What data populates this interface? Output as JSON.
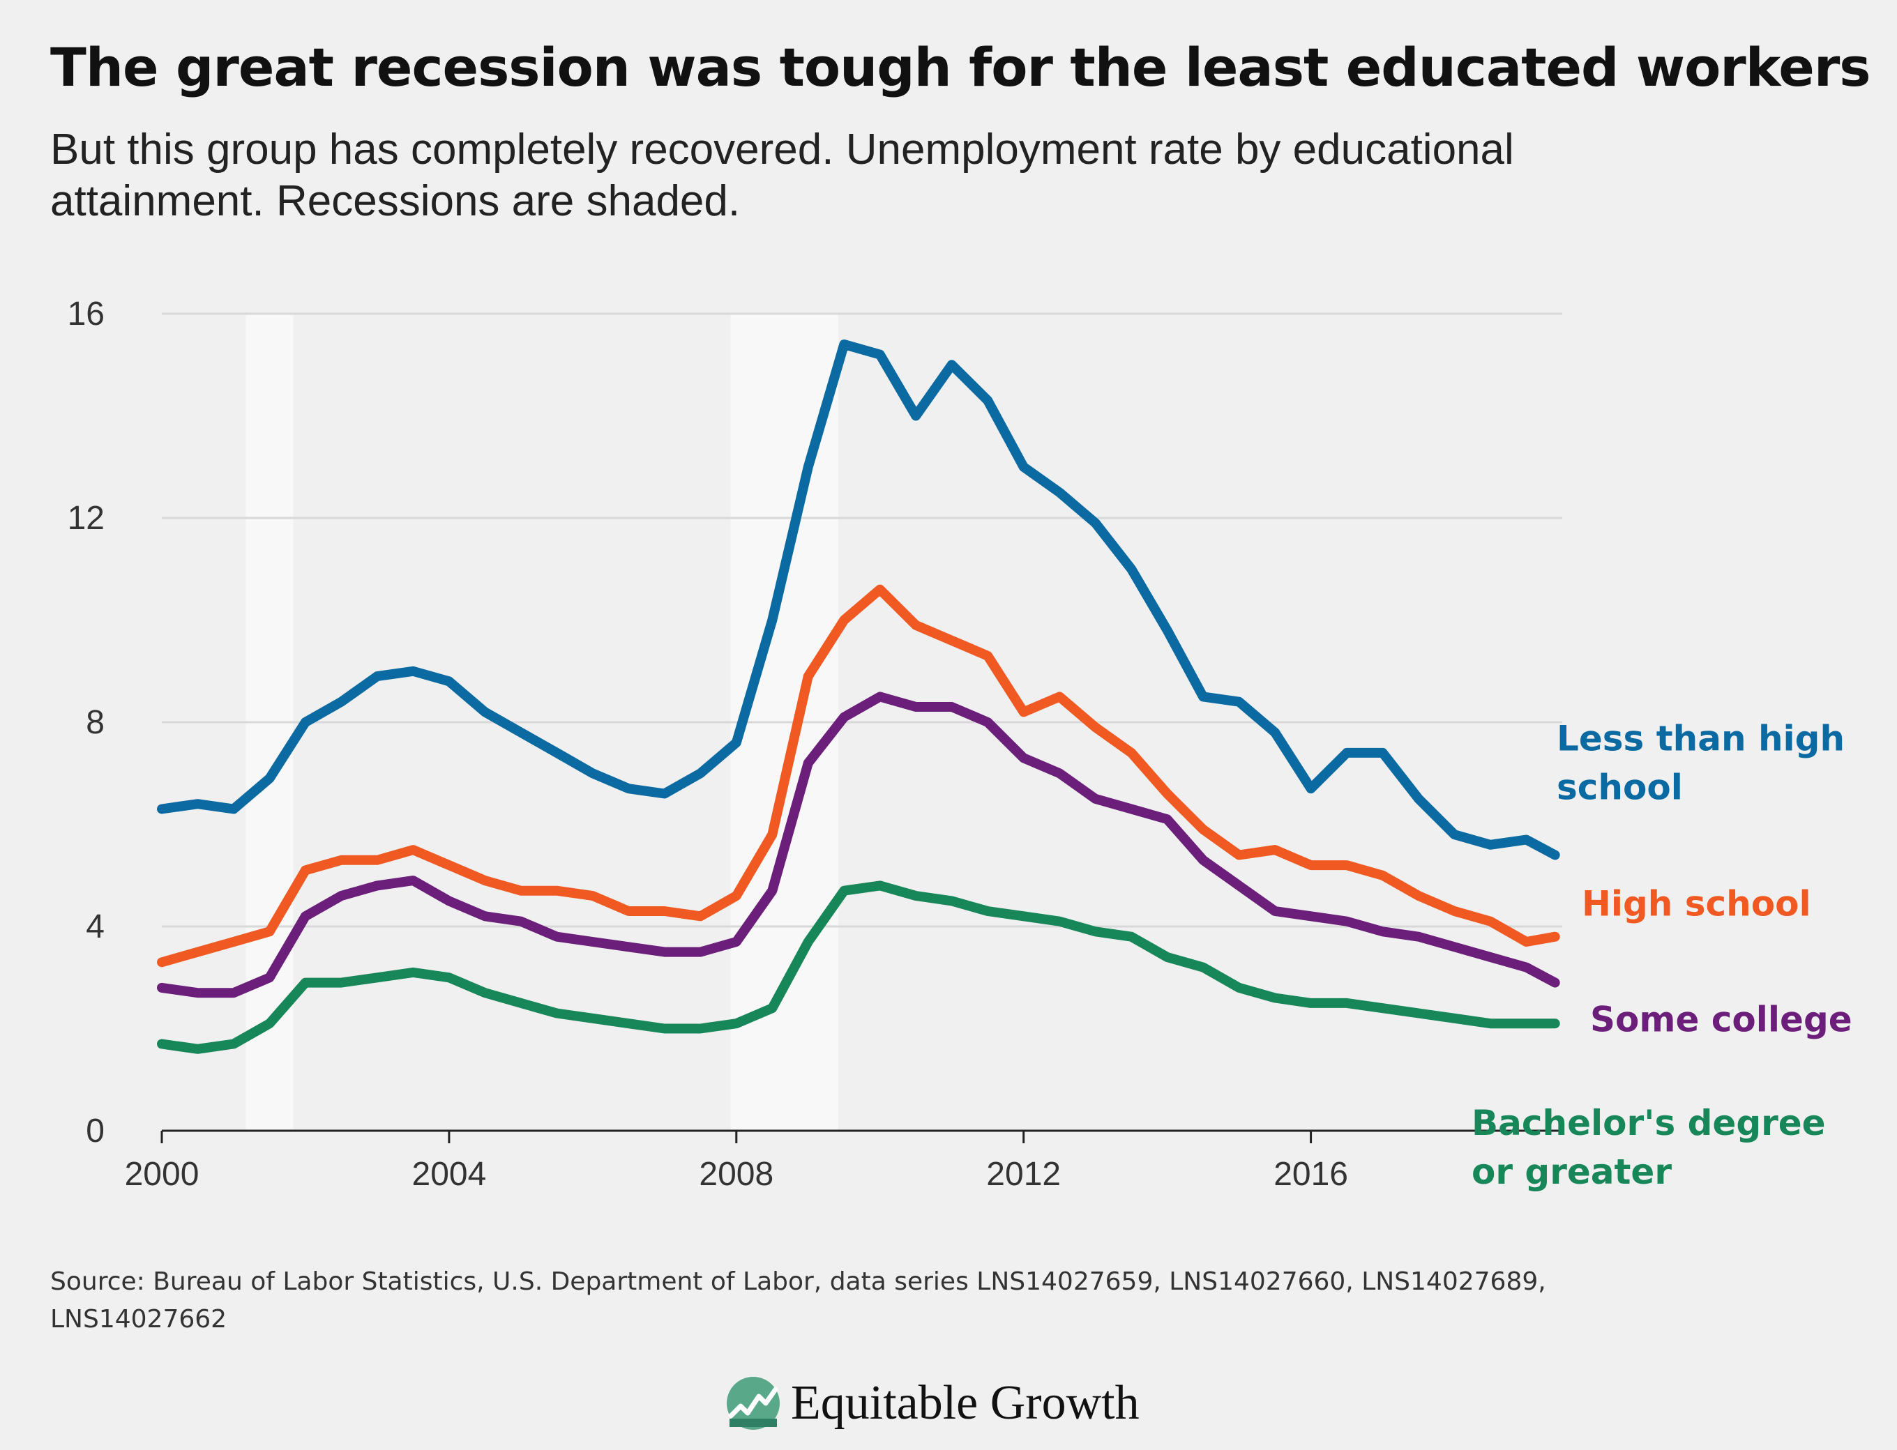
{
  "title": "The great recession was tough for the least educated workers",
  "subtitle": "But this group has completely recovered. Unemployment rate by educational attainment. Recessions are shaded.",
  "source": "Source: Bureau of Labor Statistics, U.S. Department of Labor, data series LNS14027659, LNS14027660, LNS14027689, LNS14027662",
  "brand": "Equitable Growth",
  "colors": {
    "background": "#f0f0f0",
    "recession_shade": "#f8f8f8",
    "gridline": "#d8d8d8",
    "axis": "#222222",
    "logo": "#5aa88a"
  },
  "chart_data": {
    "type": "line",
    "title": "The great recession was tough for the least educated workers",
    "subtitle": "But this group has completely recovered. Unemployment rate by educational attainment. Recessions are shaded.",
    "xlabel": "",
    "ylabel": "",
    "xlim": [
      2000,
      2019.5
    ],
    "ylim": [
      0,
      16
    ],
    "x_ticks": [
      2000,
      2004,
      2008,
      2012,
      2016
    ],
    "y_ticks": [
      0,
      4,
      8,
      12,
      16
    ],
    "grid": "horizontal",
    "legend": "direct labels at right end of lines",
    "recessions": [
      [
        2001.17,
        2001.83
      ],
      [
        2007.92,
        2009.42
      ]
    ],
    "x": [
      2000,
      2000.5,
      2001,
      2001.5,
      2002,
      2002.5,
      2003,
      2003.5,
      2004,
      2004.5,
      2005,
      2005.5,
      2006,
      2006.5,
      2007,
      2007.5,
      2008,
      2008.5,
      2009,
      2009.5,
      2010,
      2010.5,
      2011,
      2011.5,
      2012,
      2012.5,
      2013,
      2013.5,
      2014,
      2014.5,
      2015,
      2015.5,
      2016,
      2016.5,
      2017,
      2017.5,
      2018,
      2018.5,
      2019,
      2019.4
    ],
    "series": [
      {
        "name": "Less than high school",
        "label": "Less than high school",
        "color": "#0b6aa2",
        "values": [
          6.3,
          6.4,
          6.3,
          6.9,
          8.0,
          8.4,
          8.9,
          9.0,
          8.8,
          8.2,
          7.8,
          7.4,
          7.0,
          6.7,
          6.6,
          7.0,
          7.6,
          10.0,
          13.0,
          15.4,
          15.2,
          14.0,
          15.0,
          14.3,
          13.0,
          12.5,
          11.9,
          11.0,
          9.8,
          8.5,
          8.4,
          7.8,
          6.7,
          7.4,
          7.4,
          6.5,
          5.8,
          5.6,
          5.7,
          5.4
        ]
      },
      {
        "name": "High school",
        "label": "High school",
        "color": "#f05a22",
        "values": [
          3.3,
          3.5,
          3.7,
          3.9,
          5.1,
          5.3,
          5.3,
          5.5,
          5.2,
          4.9,
          4.7,
          4.7,
          4.6,
          4.3,
          4.3,
          4.2,
          4.6,
          5.8,
          8.9,
          10.0,
          10.6,
          9.9,
          9.6,
          9.3,
          8.2,
          8.5,
          7.9,
          7.4,
          6.6,
          5.9,
          5.4,
          5.5,
          5.2,
          5.2,
          5.0,
          4.6,
          4.3,
          4.1,
          3.7,
          3.8
        ]
      },
      {
        "name": "Some college",
        "label": "Some college",
        "color": "#6b1e7a",
        "values": [
          2.8,
          2.7,
          2.7,
          3.0,
          4.2,
          4.6,
          4.8,
          4.9,
          4.5,
          4.2,
          4.1,
          3.8,
          3.7,
          3.6,
          3.5,
          3.5,
          3.7,
          4.7,
          7.2,
          8.1,
          8.5,
          8.3,
          8.3,
          8.0,
          7.3,
          7.0,
          6.5,
          6.3,
          6.1,
          5.3,
          4.8,
          4.3,
          4.2,
          4.1,
          3.9,
          3.8,
          3.6,
          3.4,
          3.2,
          2.9
        ]
      },
      {
        "name": "Bachelor's degree or greater",
        "label": "Bachelor's degree or greater",
        "color": "#17875a",
        "values": [
          1.7,
          1.6,
          1.7,
          2.1,
          2.9,
          2.9,
          3.0,
          3.1,
          3.0,
          2.7,
          2.5,
          2.3,
          2.2,
          2.1,
          2.0,
          2.0,
          2.1,
          2.4,
          3.7,
          4.7,
          4.8,
          4.6,
          4.5,
          4.3,
          4.2,
          4.1,
          3.9,
          3.8,
          3.4,
          3.2,
          2.8,
          2.6,
          2.5,
          2.5,
          2.4,
          2.3,
          2.2,
          2.1,
          2.1,
          2.1
        ]
      }
    ]
  }
}
